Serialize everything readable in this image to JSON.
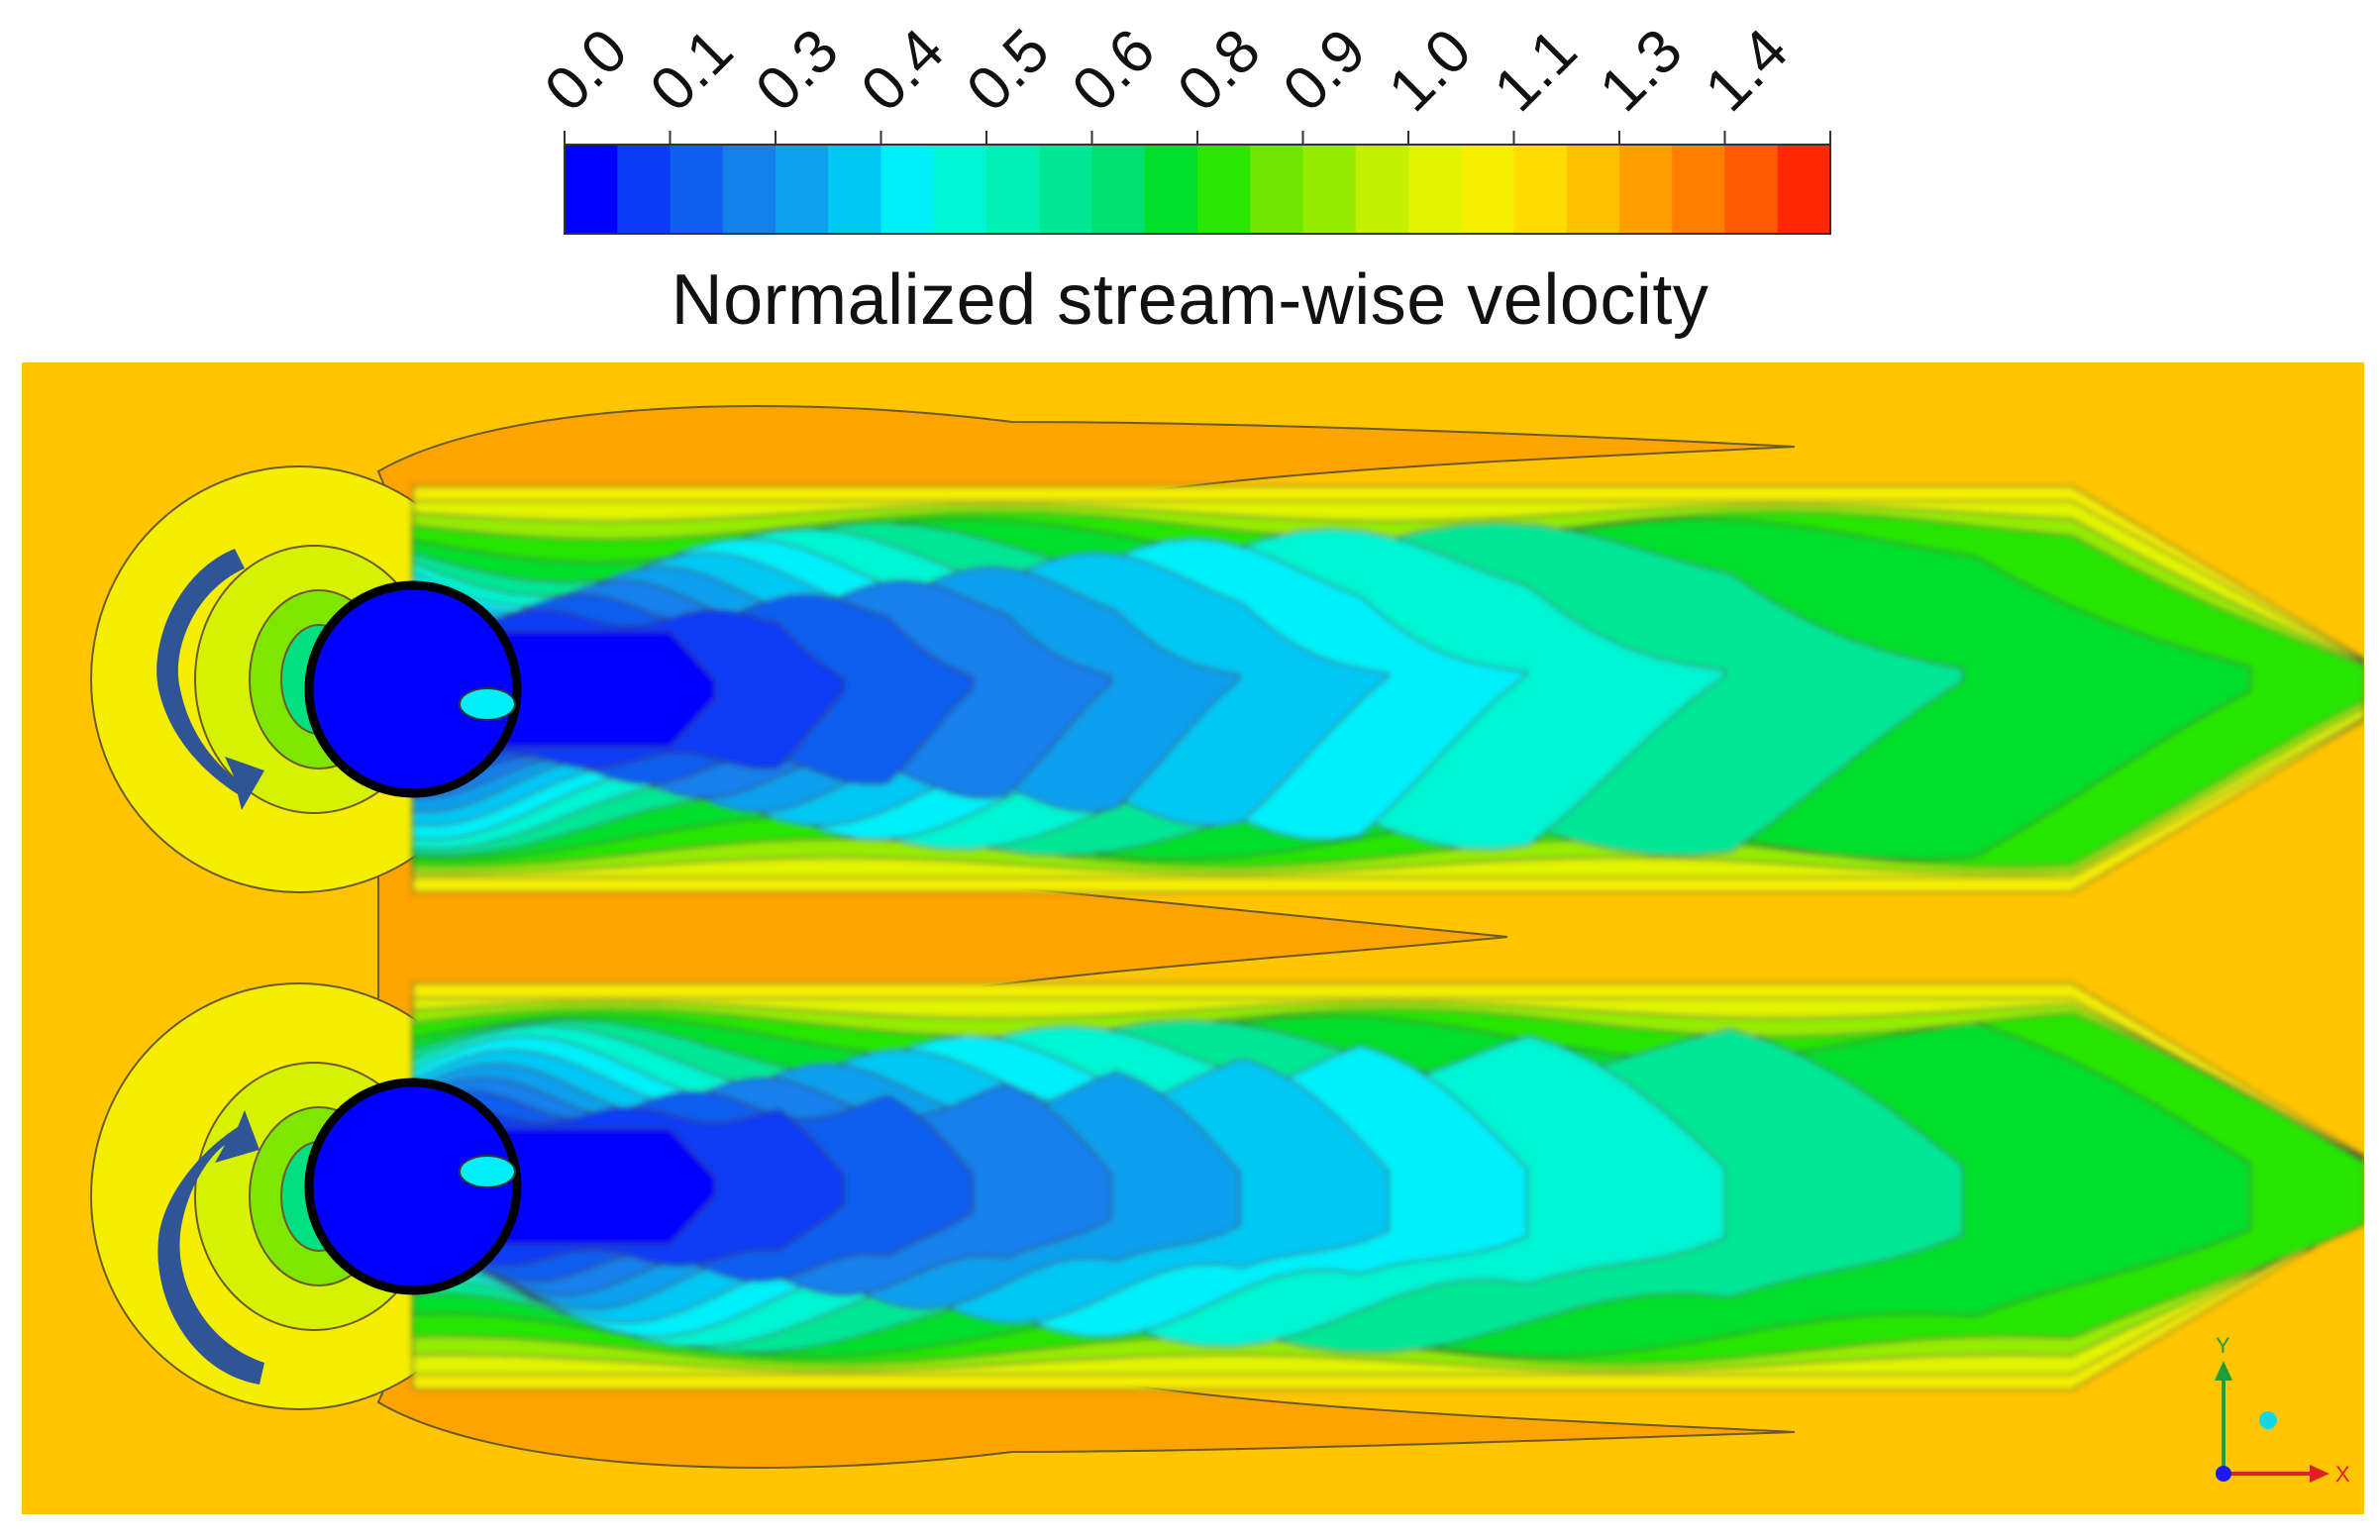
{
  "chart_data": {
    "type": "heatmap",
    "title": "",
    "legend_title": "Normalized stream-wise velocity",
    "colorbar": {
      "tick_labels": [
        "0.0",
        "0.1",
        "0.3",
        "0.4",
        "0.5",
        "0.6",
        "0.8",
        "0.9",
        "1.0",
        "1.1",
        "1.3",
        "1.4"
      ],
      "range": [
        0.0,
        1.5
      ],
      "levels": 24,
      "colors": [
        "#0000ff",
        "#0a3cf5",
        "#0f5ff0",
        "#1380ec",
        "#0fa0ee",
        "#00c8f5",
        "#00f0fa",
        "#00f5d2",
        "#00f0b4",
        "#00e896",
        "#00e070",
        "#00e02a",
        "#28e600",
        "#6ee600",
        "#96ec00",
        "#c3f000",
        "#e1f500",
        "#f5ef00",
        "#ffdc00",
        "#ffc000",
        "#ffa000",
        "#ff7f00",
        "#ff5a00",
        "#ff2800"
      ]
    },
    "axes_triad": {
      "x_label": "X",
      "y_label": "Y"
    },
    "rotation_arrows": [
      "counter-clockwise",
      "clockwise"
    ],
    "cylinders": 2
  },
  "colors": {
    "freestream": "#ffc500",
    "accelerated": "#ffa400",
    "arrow": "#2f5597",
    "contour_line": "#3a3a3a"
  }
}
